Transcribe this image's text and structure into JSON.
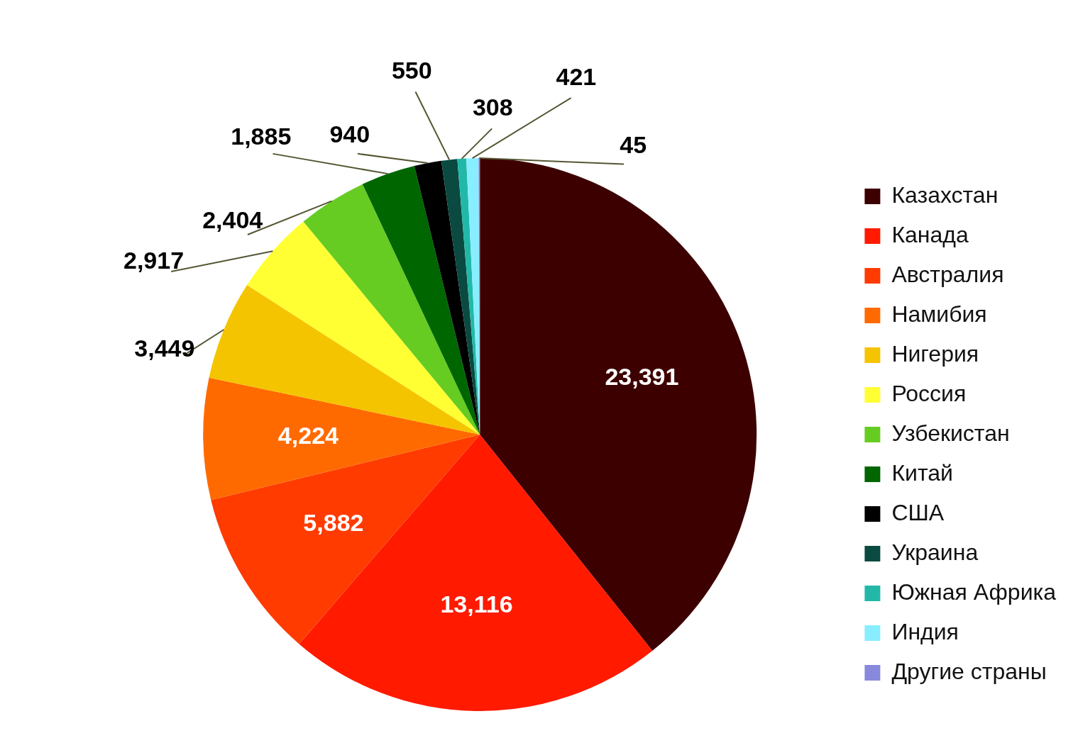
{
  "chart_data": {
    "type": "pie",
    "categories": [
      "Казахстан",
      "Канада",
      "Австралия",
      "Намибия",
      "Нигерия",
      "Россия",
      "Узбекистан",
      "Китай",
      "США",
      "Украина",
      "Южная Африка",
      "Индия",
      "Другие страны"
    ],
    "values": [
      23391,
      13116,
      5882,
      4224,
      3449,
      2917,
      2404,
      1885,
      940,
      550,
      308,
      421,
      45
    ],
    "colors": [
      "#3d0000",
      "#ff1a00",
      "#ff3b00",
      "#ff6a00",
      "#f5c400",
      "#ffff33",
      "#66cc22",
      "#006600",
      "#000000",
      "#0a4a40",
      "#22b8a8",
      "#88eeff",
      "#8888dd"
    ],
    "value_labels": [
      "23,391",
      "13,116",
      "5,882",
      "4,224",
      "3,449",
      "2,917",
      "2,404",
      "1,885",
      "940",
      "550",
      "308",
      "421",
      "45"
    ],
    "legend": "right"
  }
}
